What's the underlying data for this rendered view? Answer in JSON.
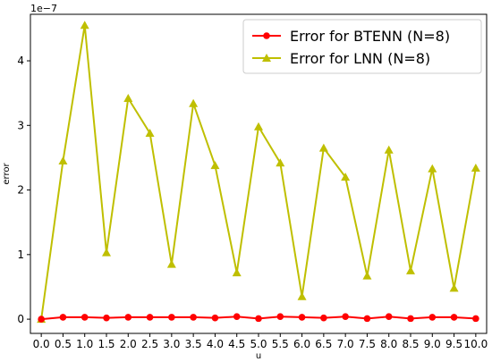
{
  "chart_data": {
    "type": "line",
    "title": "",
    "xlabel": "u",
    "ylabel": "error",
    "y_scale_label": "1e−7",
    "xlim": [
      -0.25,
      10.25
    ],
    "ylim": [
      -0.22,
      4.72
    ],
    "x_ticks": [
      0.0,
      0.5,
      1.0,
      1.5,
      2.0,
      2.5,
      3.0,
      3.5,
      4.0,
      4.5,
      5.0,
      5.5,
      6.0,
      6.5,
      7.0,
      7.5,
      8.0,
      8.5,
      9.0,
      9.5,
      10.0
    ],
    "x_tick_labels": [
      "0.0",
      "0.5",
      "1.0",
      "1.5",
      "2.0",
      "2.5",
      "3.0",
      "3.5",
      "4.0",
      "4.5",
      "5.0",
      "5.5",
      "6.0",
      "6.5",
      "7.0",
      "7.5",
      "8.0",
      "8.5",
      "9.0",
      "9.5",
      "10.0"
    ],
    "y_ticks": [
      0,
      1,
      2,
      3,
      4
    ],
    "y_tick_labels": [
      "0",
      "1",
      "2",
      "3",
      "4"
    ],
    "grid": false,
    "legend_position": "top-right",
    "x": [
      0.0,
      0.5,
      1.0,
      1.5,
      2.0,
      2.5,
      3.0,
      3.5,
      4.0,
      4.5,
      5.0,
      5.5,
      6.0,
      6.5,
      7.0,
      7.5,
      8.0,
      8.5,
      9.0,
      9.5,
      10.0
    ],
    "series": [
      {
        "name": "Error for BTENN (Ν=8)",
        "color": "#ff0000",
        "marker": "circle",
        "values": [
          0.0,
          0.03,
          0.03,
          0.02,
          0.03,
          0.03,
          0.03,
          0.03,
          0.02,
          0.04,
          0.01,
          0.04,
          0.03,
          0.02,
          0.04,
          0.01,
          0.04,
          0.01,
          0.03,
          0.03,
          0.01
        ]
      },
      {
        "name": "Error for LNN (Ν=8)",
        "color": "#bfbf00",
        "marker": "triangle",
        "values": [
          0.0,
          2.45,
          4.55,
          1.03,
          3.42,
          2.88,
          0.85,
          3.34,
          2.38,
          0.72,
          2.98,
          2.42,
          0.35,
          2.65,
          2.2,
          0.67,
          2.62,
          0.75,
          2.33,
          0.48,
          2.34
        ]
      }
    ]
  }
}
